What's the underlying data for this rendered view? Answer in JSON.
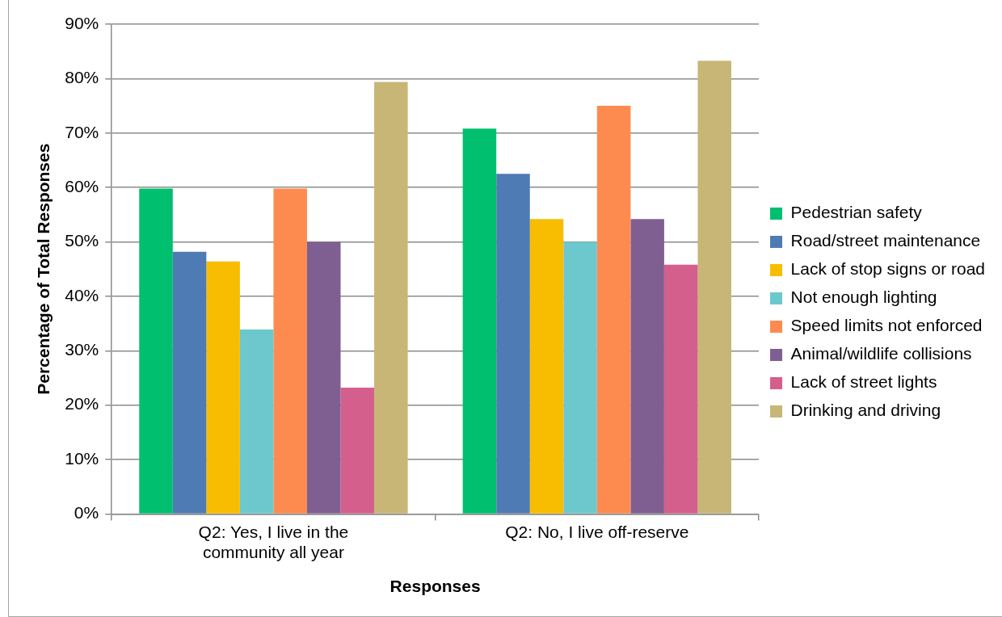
{
  "chart_data": {
    "type": "bar",
    "xlabel": "Responses",
    "ylabel": "Percentage of Total Responses",
    "categories": [
      "Q2: Yes, I live in the community all year",
      "Q2: No, I live off-reserve"
    ],
    "series": [
      {
        "name": "Pedestrian safety",
        "color": "#00bf6f",
        "values": [
          59.8,
          70.8
        ]
      },
      {
        "name": "Road/street maintenance",
        "color": "#4f7bb4",
        "values": [
          48.2,
          62.5
        ]
      },
      {
        "name": "Lack of stop signs or road",
        "color": "#f8bd00",
        "values": [
          46.4,
          54.2
        ]
      },
      {
        "name": "Not enough lighting",
        "color": "#6cc8cc",
        "values": [
          33.9,
          50
        ]
      },
      {
        "name": "Speed limits not enforced",
        "color": "#fd8b50",
        "values": [
          59.8,
          75
        ]
      },
      {
        "name": "Animal/wildlife collisions",
        "color": "#7f5f92",
        "values": [
          50,
          54.2
        ]
      },
      {
        "name": "Lack of street lights",
        "color": "#d45f8d",
        "values": [
          23.2,
          45.8
        ]
      },
      {
        "name": "Drinking and driving",
        "color": "#c8b677",
        "values": [
          79.4,
          83.3
        ]
      }
    ],
    "ylim": [
      0,
      90
    ],
    "yticks": [
      {
        "value": 0,
        "label": "0%"
      },
      {
        "value": 10,
        "label": "10%"
      },
      {
        "value": 20,
        "label": "20%"
      },
      {
        "value": 30,
        "label": "30%"
      },
      {
        "value": 40,
        "label": "40%"
      },
      {
        "value": 50,
        "label": "50%"
      },
      {
        "value": 60,
        "label": "60%"
      },
      {
        "value": 70,
        "label": "70%"
      },
      {
        "value": 80,
        "label": "80%"
      },
      {
        "value": 90,
        "label": "90%"
      }
    ],
    "grid": "y",
    "legend": "right"
  }
}
